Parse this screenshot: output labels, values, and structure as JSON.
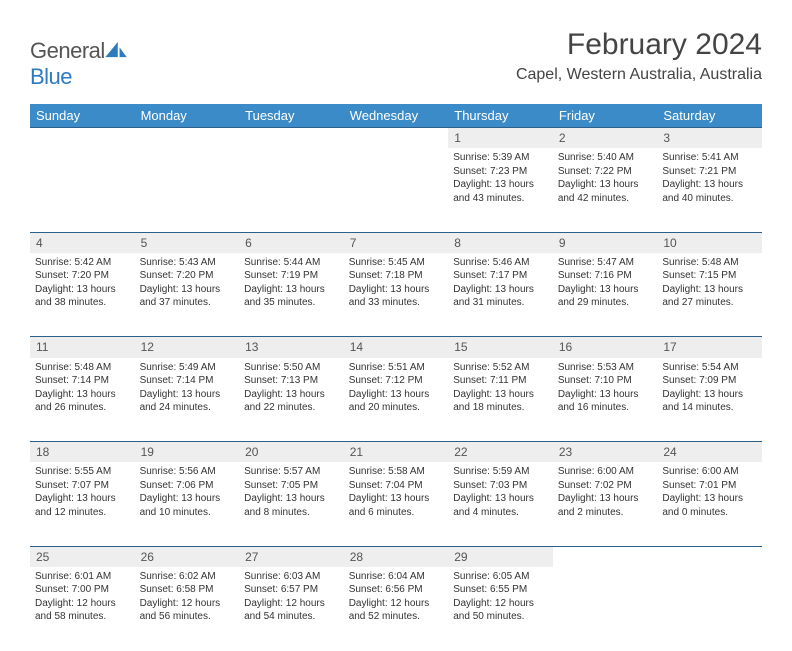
{
  "brand": {
    "part1": "General",
    "part2": "Blue"
  },
  "title": "February 2024",
  "location": "Capel, Western Australia, Australia",
  "colors": {
    "header_bg": "#3b8bc9",
    "header_text": "#ffffff",
    "daynum_bg": "#eeeeee",
    "border": "#2d5f8a",
    "body_text": "#333333",
    "brand_gray": "#555555",
    "brand_blue": "#2d7bbf"
  },
  "weekdays": [
    "Sunday",
    "Monday",
    "Tuesday",
    "Wednesday",
    "Thursday",
    "Friday",
    "Saturday"
  ],
  "weeks": [
    {
      "nums": [
        "",
        "",
        "",
        "",
        "1",
        "2",
        "3"
      ],
      "cells": [
        null,
        null,
        null,
        null,
        {
          "sunrise": "5:39 AM",
          "sunset": "7:23 PM",
          "daylight": "13 hours and 43 minutes."
        },
        {
          "sunrise": "5:40 AM",
          "sunset": "7:22 PM",
          "daylight": "13 hours and 42 minutes."
        },
        {
          "sunrise": "5:41 AM",
          "sunset": "7:21 PM",
          "daylight": "13 hours and 40 minutes."
        }
      ]
    },
    {
      "nums": [
        "4",
        "5",
        "6",
        "7",
        "8",
        "9",
        "10"
      ],
      "cells": [
        {
          "sunrise": "5:42 AM",
          "sunset": "7:20 PM",
          "daylight": "13 hours and 38 minutes."
        },
        {
          "sunrise": "5:43 AM",
          "sunset": "7:20 PM",
          "daylight": "13 hours and 37 minutes."
        },
        {
          "sunrise": "5:44 AM",
          "sunset": "7:19 PM",
          "daylight": "13 hours and 35 minutes."
        },
        {
          "sunrise": "5:45 AM",
          "sunset": "7:18 PM",
          "daylight": "13 hours and 33 minutes."
        },
        {
          "sunrise": "5:46 AM",
          "sunset": "7:17 PM",
          "daylight": "13 hours and 31 minutes."
        },
        {
          "sunrise": "5:47 AM",
          "sunset": "7:16 PM",
          "daylight": "13 hours and 29 minutes."
        },
        {
          "sunrise": "5:48 AM",
          "sunset": "7:15 PM",
          "daylight": "13 hours and 27 minutes."
        }
      ]
    },
    {
      "nums": [
        "11",
        "12",
        "13",
        "14",
        "15",
        "16",
        "17"
      ],
      "cells": [
        {
          "sunrise": "5:48 AM",
          "sunset": "7:14 PM",
          "daylight": "13 hours and 26 minutes."
        },
        {
          "sunrise": "5:49 AM",
          "sunset": "7:14 PM",
          "daylight": "13 hours and 24 minutes."
        },
        {
          "sunrise": "5:50 AM",
          "sunset": "7:13 PM",
          "daylight": "13 hours and 22 minutes."
        },
        {
          "sunrise": "5:51 AM",
          "sunset": "7:12 PM",
          "daylight": "13 hours and 20 minutes."
        },
        {
          "sunrise": "5:52 AM",
          "sunset": "7:11 PM",
          "daylight": "13 hours and 18 minutes."
        },
        {
          "sunrise": "5:53 AM",
          "sunset": "7:10 PM",
          "daylight": "13 hours and 16 minutes."
        },
        {
          "sunrise": "5:54 AM",
          "sunset": "7:09 PM",
          "daylight": "13 hours and 14 minutes."
        }
      ]
    },
    {
      "nums": [
        "18",
        "19",
        "20",
        "21",
        "22",
        "23",
        "24"
      ],
      "cells": [
        {
          "sunrise": "5:55 AM",
          "sunset": "7:07 PM",
          "daylight": "13 hours and 12 minutes."
        },
        {
          "sunrise": "5:56 AM",
          "sunset": "7:06 PM",
          "daylight": "13 hours and 10 minutes."
        },
        {
          "sunrise": "5:57 AM",
          "sunset": "7:05 PM",
          "daylight": "13 hours and 8 minutes."
        },
        {
          "sunrise": "5:58 AM",
          "sunset": "7:04 PM",
          "daylight": "13 hours and 6 minutes."
        },
        {
          "sunrise": "5:59 AM",
          "sunset": "7:03 PM",
          "daylight": "13 hours and 4 minutes."
        },
        {
          "sunrise": "6:00 AM",
          "sunset": "7:02 PM",
          "daylight": "13 hours and 2 minutes."
        },
        {
          "sunrise": "6:00 AM",
          "sunset": "7:01 PM",
          "daylight": "13 hours and 0 minutes."
        }
      ]
    },
    {
      "nums": [
        "25",
        "26",
        "27",
        "28",
        "29",
        "",
        ""
      ],
      "cells": [
        {
          "sunrise": "6:01 AM",
          "sunset": "7:00 PM",
          "daylight": "12 hours and 58 minutes."
        },
        {
          "sunrise": "6:02 AM",
          "sunset": "6:58 PM",
          "daylight": "12 hours and 56 minutes."
        },
        {
          "sunrise": "6:03 AM",
          "sunset": "6:57 PM",
          "daylight": "12 hours and 54 minutes."
        },
        {
          "sunrise": "6:04 AM",
          "sunset": "6:56 PM",
          "daylight": "12 hours and 52 minutes."
        },
        {
          "sunrise": "6:05 AM",
          "sunset": "6:55 PM",
          "daylight": "12 hours and 50 minutes."
        },
        null,
        null
      ]
    }
  ],
  "labels": {
    "sunrise": "Sunrise: ",
    "sunset": "Sunset: ",
    "daylight": "Daylight: "
  }
}
